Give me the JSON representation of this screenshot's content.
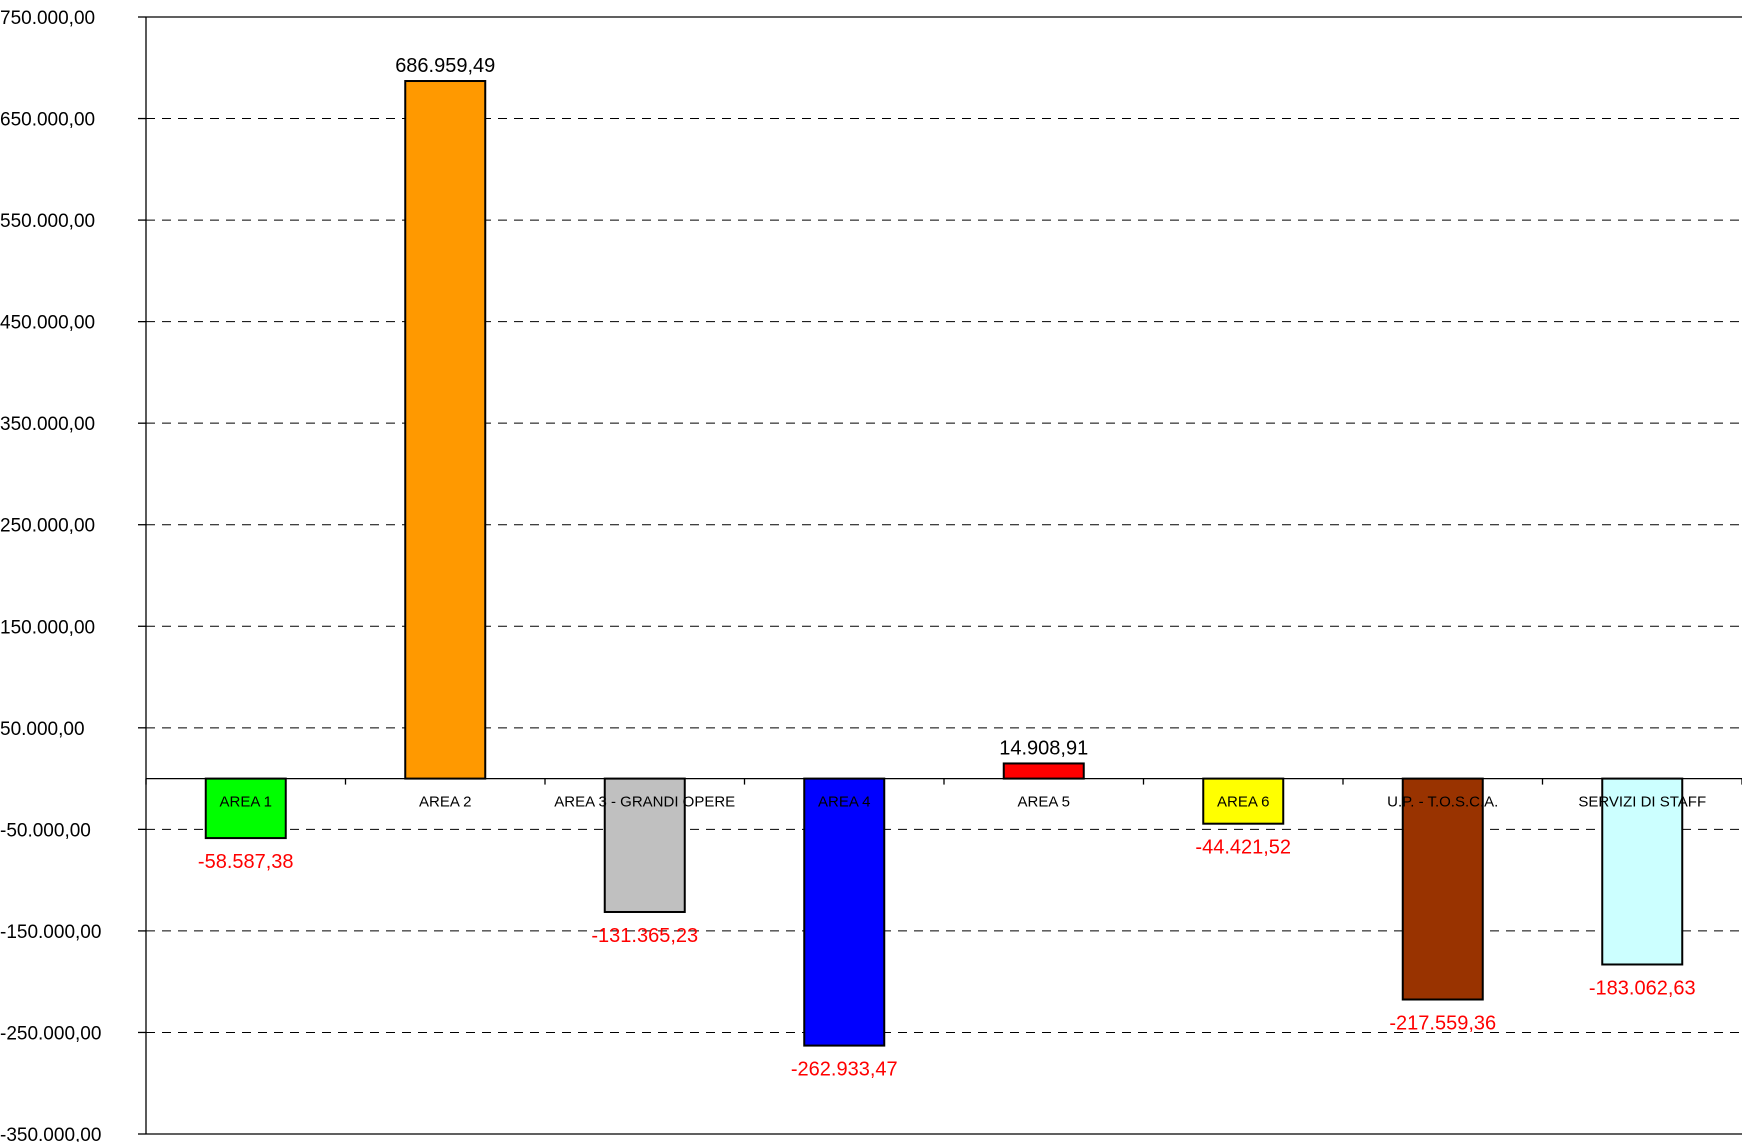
{
  "chart_data": {
    "type": "bar",
    "title": "",
    "xlabel": "",
    "ylabel": "",
    "ylim": [
      -350000,
      750000
    ],
    "y_tick_step": 100000,
    "y_tick_labels": [
      "750.000,00",
      "650.000,00",
      "550.000,00",
      "450.000,00",
      "350.000,00",
      "250.000,00",
      "150.000,00",
      "50.000,00",
      "-50.000,00",
      "-150.000,00",
      "-250.000,00",
      "-350.000,00"
    ],
    "y_tick_values": [
      750000,
      650000,
      550000,
      450000,
      350000,
      250000,
      150000,
      50000,
      -50000,
      -150000,
      -250000,
      -350000
    ],
    "grid": true,
    "legend": "none",
    "categories": [
      "AREA 1",
      "AREA 2",
      "AREA 3 - GRANDI OPERE",
      "AREA 4",
      "AREA 5",
      "AREA 6",
      "U.P. - T.O.S.C.A.",
      "SERVIZI DI STAFF"
    ],
    "values": [
      -58587.38,
      686959.49,
      -131365.23,
      -262933.47,
      14908.91,
      -44421.52,
      -217559.36,
      -183062.63
    ],
    "data_labels": [
      "-58.587,38",
      "686.959,49",
      "-131.365,23",
      "-262.933,47",
      "14.908,91",
      "-44.421,52",
      "-217.559,36",
      "-183.062,63"
    ],
    "bar_colors": [
      "#00ff00",
      "#ff9900",
      "#c0c0c0",
      "#0000ff",
      "#ff0000",
      "#ffff00",
      "#993300",
      "#ccffff"
    ],
    "positive_label_color": "#000000",
    "negative_label_color": "#ff0000"
  }
}
